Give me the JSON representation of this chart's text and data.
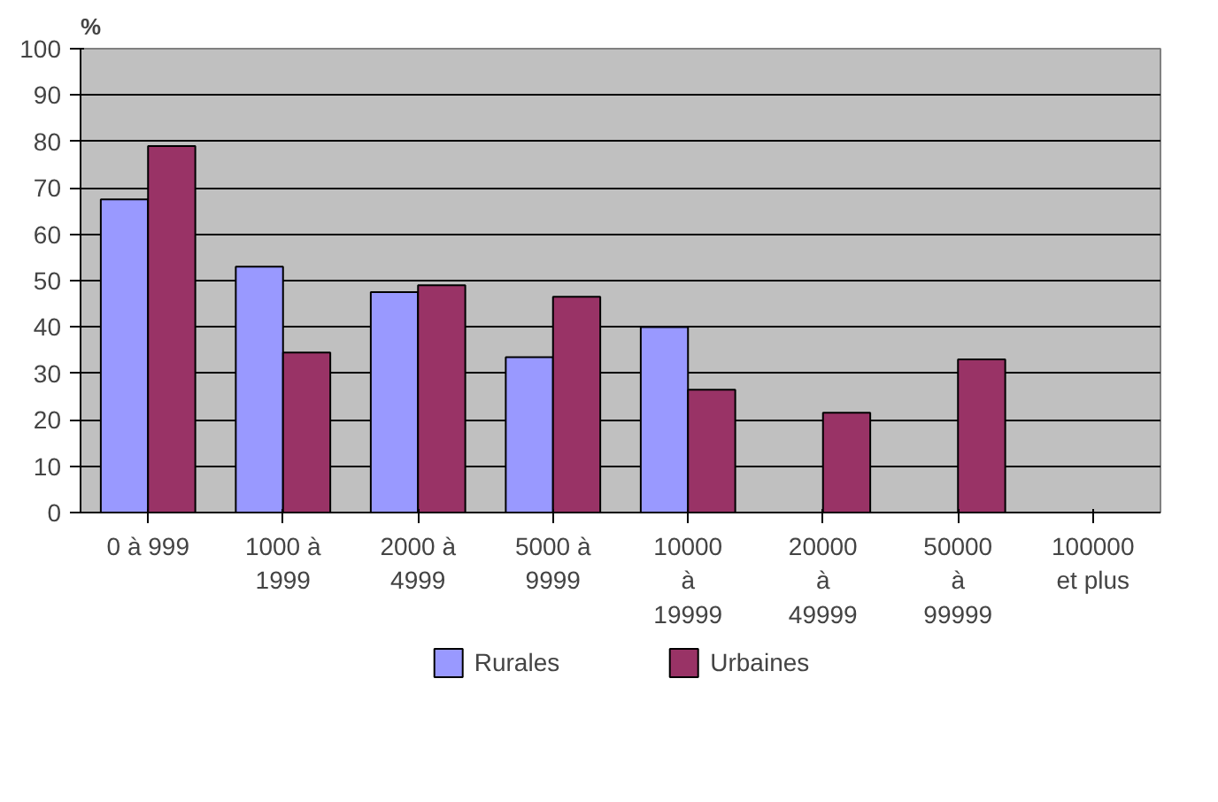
{
  "chart_data": {
    "type": "bar",
    "ylabel": "%",
    "categories": [
      "0 à 999",
      "1000 à\n1999",
      "2000 à\n4999",
      "5000 à\n9999",
      "10000\nà\n19999",
      "20000\nà\n49999",
      "50000\nà\n99999",
      "100000\net plus"
    ],
    "series": [
      {
        "name": "Rurales",
        "color": "#9999ff",
        "values": [
          67.5,
          53,
          47.5,
          33.5,
          40,
          null,
          null,
          null
        ]
      },
      {
        "name": "Urbaines",
        "color": "#993366",
        "values": [
          79,
          34.5,
          49,
          46.5,
          26.5,
          21.5,
          33,
          null
        ]
      }
    ],
    "ylim": [
      0,
      100
    ],
    "yticks": [
      0,
      10,
      20,
      30,
      40,
      50,
      60,
      70,
      80,
      90,
      100
    ],
    "grid": "y",
    "legend": "bottom"
  }
}
